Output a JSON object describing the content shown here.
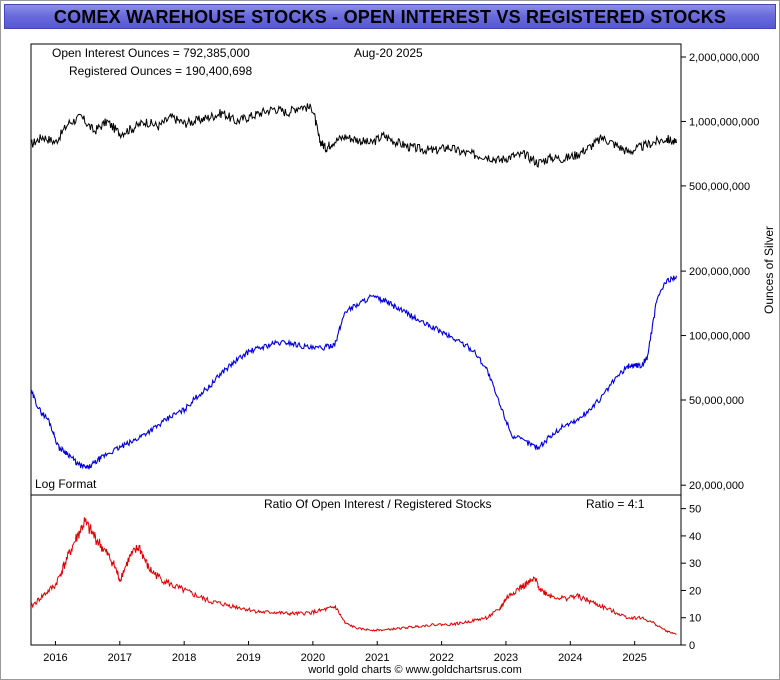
{
  "title": "COMEX WAREHOUSE STOCKS - OPEN INTEREST VS REGISTERED STOCKS",
  "header": {
    "open_interest_label": "Open Interest Ounces = 792,385,000",
    "registered_label": "Registered Ounces = 190,400,698",
    "date_label": "Aug-20  2025"
  },
  "log_format_label": "Log Format",
  "footer": "world gold charts © www.goldchartsrus.com",
  "colors": {
    "title_bar": "#6a6cdc",
    "open_interest": "#000000",
    "registered": "#0000dd",
    "ratio": "#e00000"
  },
  "chart_data": [
    {
      "type": "line",
      "scale": "log",
      "ylabel": "Ounces of Silver",
      "ylim": [
        18000000,
        2300000000
      ],
      "y_ticks": [
        2000000000,
        1000000000,
        500000000,
        200000000,
        100000000,
        50000000,
        20000000
      ],
      "y_tick_labels": [
        "2,000,000,000",
        "1,000,000,000",
        "500,000,000",
        "200,000,000",
        "100,000,000",
        "50,000,000",
        "20,000,000"
      ],
      "x_ticks": [
        2016,
        2017,
        2018,
        2019,
        2020,
        2021,
        2022,
        2023,
        2024,
        2025
      ],
      "x_tick_labels": [
        "2016",
        "2017",
        "2018",
        "2019",
        "2020",
        "2021",
        "2022",
        "2023",
        "2024",
        "2025"
      ],
      "xlim": [
        2015.62,
        2025.72
      ],
      "series": [
        {
          "key": "open_interest",
          "color": "#000000",
          "x": [
            2015.62,
            2015.8,
            2016.0,
            2016.2,
            2016.4,
            2016.6,
            2016.8,
            2017.0,
            2017.2,
            2017.4,
            2017.6,
            2017.8,
            2018.0,
            2018.2,
            2018.4,
            2018.6,
            2018.8,
            2019.0,
            2019.2,
            2019.4,
            2019.6,
            2019.8,
            2020.0,
            2020.1,
            2020.2,
            2020.3,
            2020.5,
            2020.7,
            2020.9,
            2021.1,
            2021.3,
            2021.5,
            2021.7,
            2021.9,
            2022.1,
            2022.3,
            2022.5,
            2022.7,
            2022.9,
            2023.1,
            2023.3,
            2023.5,
            2023.7,
            2023.9,
            2024.1,
            2024.3,
            2024.5,
            2024.7,
            2024.9,
            2025.1,
            2025.3,
            2025.5,
            2025.65
          ],
          "values": [
            780000000,
            850000000,
            800000000,
            980000000,
            1050000000,
            900000000,
            1000000000,
            880000000,
            930000000,
            1000000000,
            950000000,
            1050000000,
            980000000,
            1010000000,
            1050000000,
            1100000000,
            1000000000,
            1050000000,
            1100000000,
            1150000000,
            1100000000,
            1180000000,
            1150000000,
            820000000,
            750000000,
            800000000,
            850000000,
            820000000,
            790000000,
            860000000,
            800000000,
            760000000,
            740000000,
            730000000,
            760000000,
            720000000,
            700000000,
            690000000,
            660000000,
            690000000,
            700000000,
            640000000,
            680000000,
            670000000,
            700000000,
            760000000,
            840000000,
            780000000,
            720000000,
            760000000,
            800000000,
            830000000,
            792385000
          ]
        },
        {
          "key": "registered",
          "color": "#0000dd",
          "x": [
            2015.62,
            2015.75,
            2015.9,
            2016.05,
            2016.2,
            2016.35,
            2016.5,
            2016.65,
            2016.8,
            2017.0,
            2017.2,
            2017.4,
            2017.6,
            2017.8,
            2018.0,
            2018.2,
            2018.4,
            2018.6,
            2018.8,
            2019.0,
            2019.2,
            2019.4,
            2019.6,
            2019.8,
            2020.0,
            2020.2,
            2020.35,
            2020.5,
            2020.7,
            2020.9,
            2021.1,
            2021.3,
            2021.5,
            2021.7,
            2021.9,
            2022.1,
            2022.3,
            2022.5,
            2022.7,
            2022.9,
            2023.1,
            2023.3,
            2023.5,
            2023.7,
            2023.9,
            2024.1,
            2024.3,
            2024.5,
            2024.7,
            2024.9,
            2025.0,
            2025.1,
            2025.2,
            2025.35,
            2025.5,
            2025.65
          ],
          "values": [
            55000000,
            45000000,
            40000000,
            30000000,
            28000000,
            25000000,
            24000000,
            26000000,
            28000000,
            30000000,
            32000000,
            35000000,
            38000000,
            42000000,
            45000000,
            52000000,
            58000000,
            68000000,
            76000000,
            84000000,
            88000000,
            92000000,
            93000000,
            90000000,
            87000000,
            88000000,
            92000000,
            130000000,
            140000000,
            152000000,
            146000000,
            135000000,
            125000000,
            115000000,
            108000000,
            100000000,
            93000000,
            85000000,
            70000000,
            48000000,
            34000000,
            32000000,
            30000000,
            34000000,
            38000000,
            40000000,
            45000000,
            52000000,
            63000000,
            72000000,
            73000000,
            72000000,
            80000000,
            150000000,
            180000000,
            190400698
          ]
        }
      ]
    },
    {
      "type": "line",
      "title": "Ratio Of Open Interest / Registered Stocks",
      "annotation": "Ratio = 4:1",
      "ylim": [
        0,
        55
      ],
      "y_ticks": [
        0,
        10,
        20,
        30,
        40,
        50
      ],
      "y_tick_labels": [
        "0",
        "10",
        "20",
        "30",
        "40",
        "50"
      ],
      "xlim": [
        2015.62,
        2025.72
      ],
      "series": [
        {
          "key": "ratio",
          "color": "#e00000",
          "x": [
            2015.62,
            2015.8,
            2016.0,
            2016.15,
            2016.3,
            2016.45,
            2016.6,
            2016.75,
            2016.9,
            2017.0,
            2017.15,
            2017.3,
            2017.45,
            2017.6,
            2017.8,
            2018.0,
            2018.2,
            2018.4,
            2018.6,
            2018.8,
            2019.0,
            2019.2,
            2019.4,
            2019.6,
            2019.8,
            2020.0,
            2020.2,
            2020.35,
            2020.5,
            2020.7,
            2020.9,
            2021.1,
            2021.3,
            2021.5,
            2021.7,
            2021.9,
            2022.1,
            2022.3,
            2022.5,
            2022.7,
            2022.9,
            2023.0,
            2023.15,
            2023.3,
            2023.45,
            2023.55,
            2023.7,
            2023.9,
            2024.1,
            2024.3,
            2024.5,
            2024.7,
            2024.9,
            2025.1,
            2025.3,
            2025.5,
            2025.65
          ],
          "values": [
            14,
            18,
            22,
            30,
            38,
            45,
            40,
            35,
            30,
            24,
            32,
            36,
            28,
            25,
            22,
            20,
            18,
            16,
            15,
            14,
            13,
            12,
            12,
            11.5,
            11.5,
            12,
            13,
            14,
            8,
            6,
            5.5,
            5.5,
            6,
            6.5,
            7,
            7.5,
            7.5,
            8,
            9,
            10,
            13,
            17,
            20,
            22,
            24,
            20,
            18,
            17,
            18,
            16,
            14,
            12,
            10,
            10,
            8,
            5,
            4
          ]
        }
      ]
    }
  ]
}
